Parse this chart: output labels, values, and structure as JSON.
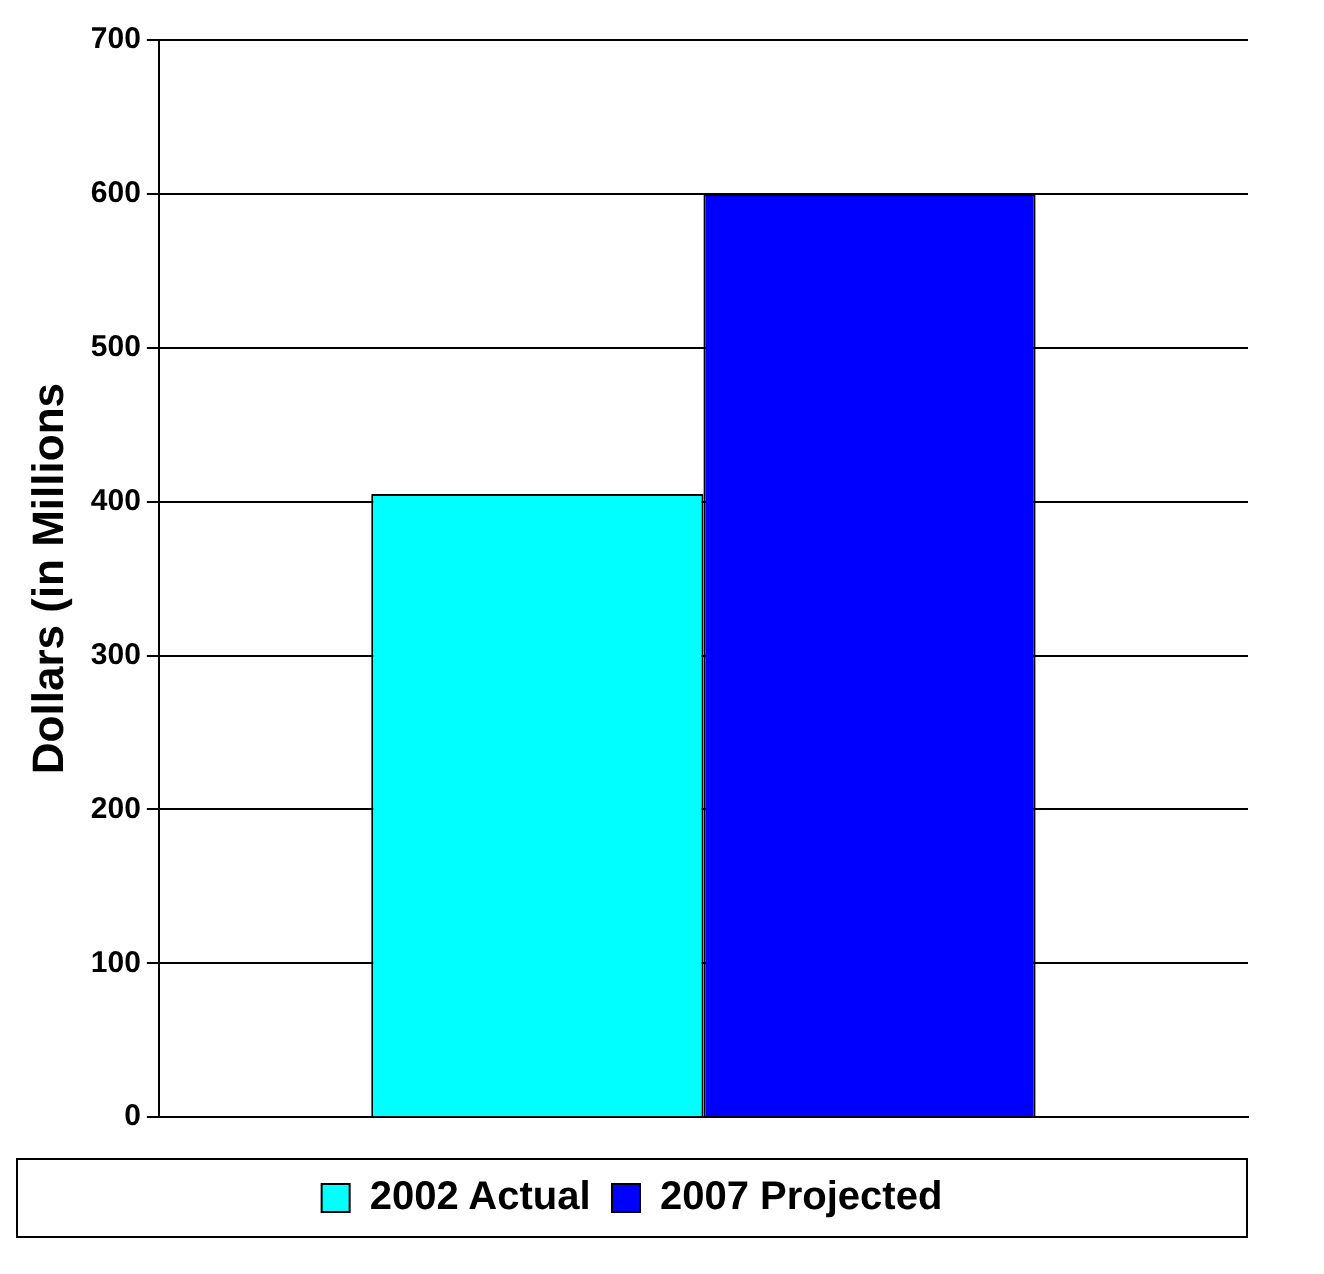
{
  "chart_data": {
    "type": "bar",
    "ylabel": "Dollars (in Millions",
    "categories": [
      null
    ],
    "series": [
      {
        "name": "2002 Actual",
        "color": "#00ffff",
        "values": [
          405
        ]
      },
      {
        "name": "2007 Projected",
        "color": "#0000ff",
        "values": [
          600
        ]
      }
    ],
    "ylim": [
      0,
      700
    ],
    "yticks": [
      0,
      100,
      200,
      300,
      400,
      500,
      600,
      700
    ],
    "grid": "y",
    "legend": "bottom"
  }
}
